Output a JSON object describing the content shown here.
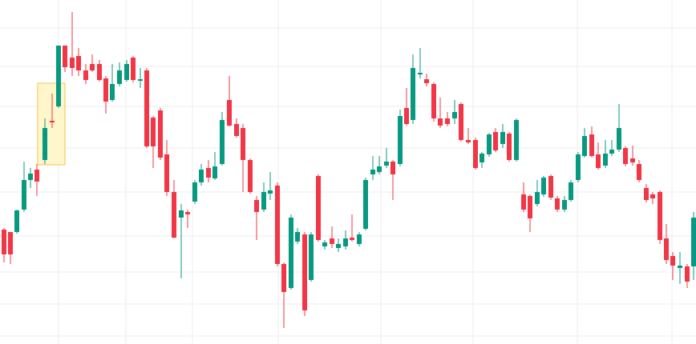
{
  "chart_data": {
    "type": "candlestick",
    "up_color": "#089981",
    "down_color": "#f23645",
    "grid": true,
    "xlim": [
      0,
      868
    ],
    "ylim": [
      0,
      430
    ],
    "xticks": [
      73,
      157,
      240,
      347,
      475,
      590,
      720,
      838
    ],
    "yticks": [
      10,
      50,
      90,
      135,
      190,
      245,
      297,
      347,
      395
    ],
    "x": [
      5,
      13,
      21,
      30,
      38,
      46,
      56,
      65,
      73,
      81,
      90,
      98,
      107,
      115,
      124,
      132,
      140,
      149,
      158,
      166,
      175,
      183,
      191,
      200,
      208,
      217,
      226,
      234,
      243,
      251,
      260,
      268,
      277,
      286,
      295,
      303,
      312,
      320,
      329,
      337,
      346,
      354,
      363,
      371,
      380,
      388,
      397,
      405,
      414,
      422,
      431,
      439,
      448,
      456,
      465,
      473,
      482,
      490,
      499,
      507,
      515,
      524,
      532,
      541,
      549,
      558,
      567,
      575,
      584,
      593,
      601,
      610,
      618,
      627,
      635,
      644,
      653,
      661,
      670,
      678,
      687,
      695,
      704,
      712,
      721,
      729,
      738,
      746,
      755,
      763,
      772,
      780,
      789,
      797,
      806,
      814,
      823,
      831,
      839,
      848,
      857,
      865
    ],
    "open": [
      143,
      140,
      140,
      168,
      205,
      218,
      230,
      279,
      297,
      373,
      358,
      360,
      342,
      350,
      350,
      332,
      305,
      325,
      330,
      358,
      329,
      342,
      283,
      292,
      237,
      190,
      158,
      165,
      178,
      202,
      220,
      207,
      225,
      305,
      275,
      270,
      230,
      180,
      168,
      188,
      198,
      100,
      70,
      128,
      137,
      80,
      210,
      122,
      132,
      120,
      122,
      133,
      125,
      144,
      212,
      215,
      223,
      228,
      225,
      295,
      280,
      337,
      331,
      325,
      282,
      282,
      282,
      300,
      255,
      255,
      227,
      237,
      265,
      250,
      263,
      230,
      187,
      185,
      175,
      187,
      210,
      182,
      168,
      180,
      205,
      235,
      262,
      237,
      223,
      238,
      243,
      245,
      232,
      225,
      195,
      187,
      190,
      132,
      110,
      95,
      97,
      97
    ],
    "high": [
      145,
      140,
      168,
      228,
      220,
      225,
      282,
      313,
      373,
      373,
      415,
      370,
      350,
      362,
      355,
      335,
      350,
      352,
      355,
      360,
      345,
      345,
      285,
      295,
      255,
      205,
      175,
      168,
      205,
      225,
      230,
      240,
      290,
      335,
      282,
      275,
      232,
      185,
      202,
      215,
      202,
      102,
      162,
      145,
      140,
      140,
      212,
      130,
      147,
      132,
      142,
      162,
      140,
      208,
      235,
      235,
      245,
      230,
      293,
      320,
      362,
      370,
      338,
      327,
      308,
      290,
      305,
      302,
      270,
      258,
      240,
      264,
      270,
      275,
      265,
      282,
      202,
      187,
      205,
      210,
      212,
      185,
      185,
      205,
      240,
      270,
      272,
      252,
      255,
      255,
      300,
      247,
      248,
      230,
      200,
      190,
      192,
      150,
      115,
      115,
      100,
      165
    ],
    "low": [
      102,
      100,
      138,
      165,
      195,
      185,
      225,
      270,
      295,
      340,
      335,
      335,
      325,
      340,
      328,
      288,
      303,
      322,
      328,
      327,
      320,
      245,
      220,
      230,
      185,
      132,
      82,
      145,
      175,
      198,
      202,
      205,
      223,
      272,
      258,
      190,
      188,
      130,
      165,
      180,
      97,
      20,
      68,
      125,
      35,
      78,
      128,
      118,
      120,
      115,
      118,
      128,
      122,
      142,
      205,
      212,
      220,
      180,
      222,
      273,
      275,
      332,
      322,
      278,
      270,
      272,
      275,
      253,
      250,
      218,
      220,
      234,
      240,
      245,
      228,
      228,
      165,
      140,
      172,
      184,
      180,
      165,
      165,
      178,
      202,
      233,
      233,
      218,
      220,
      235,
      240,
      222,
      223,
      202,
      177,
      175,
      125,
      100,
      80,
      75,
      70,
      80
    ],
    "close": [
      112,
      112,
      167,
      205,
      213,
      203,
      270,
      277,
      373,
      346,
      345,
      342,
      330,
      342,
      330,
      303,
      325,
      342,
      350,
      330,
      331,
      247,
      247,
      233,
      190,
      133,
      167,
      162,
      202,
      218,
      208,
      222,
      280,
      273,
      260,
      230,
      190,
      165,
      190,
      192,
      100,
      65,
      158,
      140,
      42,
      137,
      130,
      127,
      125,
      125,
      132,
      130,
      137,
      205,
      218,
      222,
      228,
      212,
      285,
      275,
      345,
      339,
      326,
      282,
      273,
      275,
      290,
      255,
      252,
      220,
      238,
      262,
      242,
      265,
      230,
      280,
      168,
      157,
      190,
      208,
      183,
      168,
      180,
      202,
      237,
      260,
      235,
      220,
      238,
      243,
      270,
      225,
      227,
      205,
      180,
      182,
      130,
      105,
      98,
      98,
      78,
      158
    ]
  }
}
